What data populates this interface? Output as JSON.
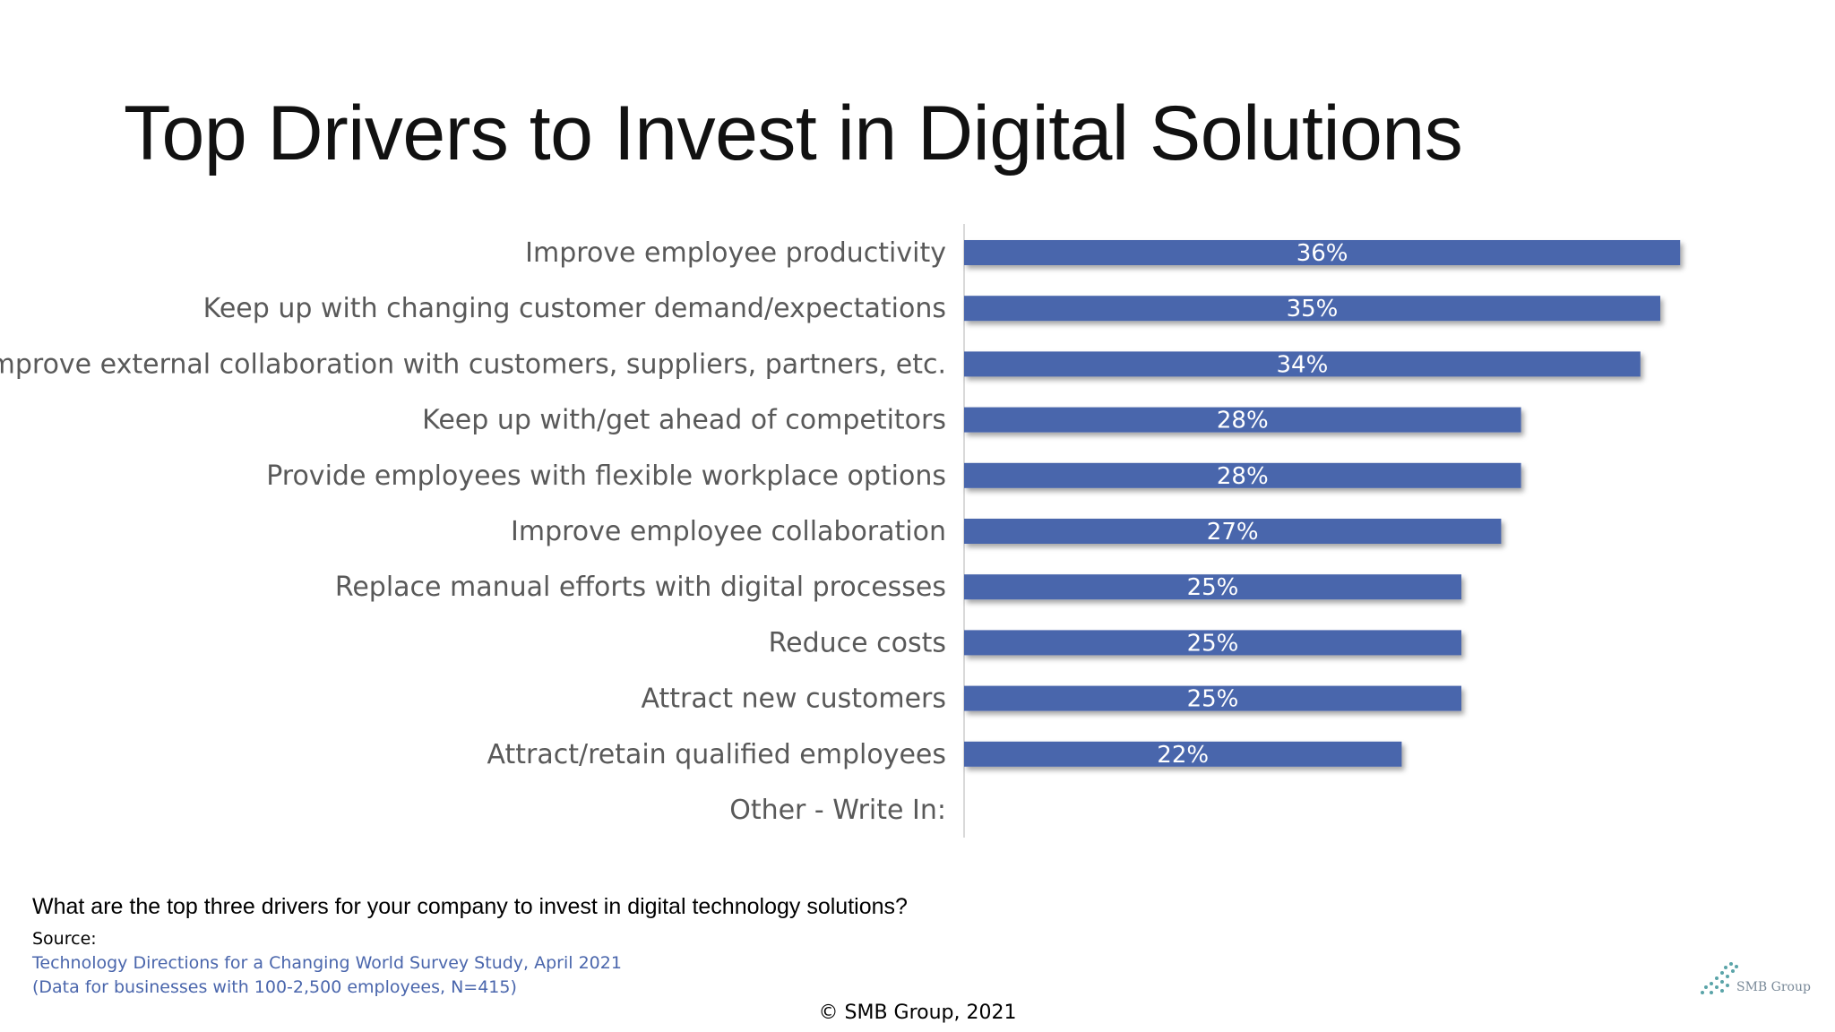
{
  "title": "Top Drivers to Invest in Digital Solutions",
  "chart_data": {
    "type": "bar",
    "orientation": "horizontal",
    "categories": [
      "Improve employee productivity",
      "Keep up with changing customer demand/expectations",
      "Improve external collaboration with customers, suppliers, partners, etc.",
      "Keep up with/get ahead of competitors",
      "Provide employees with flexible workplace options",
      "Improve employee collaboration",
      "Replace manual efforts with digital processes",
      "Reduce costs",
      "Attract new customers",
      "Attract/retain qualified employees",
      "Other - Write In:"
    ],
    "values": [
      36,
      35,
      34,
      28,
      28,
      27,
      25,
      25,
      25,
      22,
      0
    ],
    "value_labels": [
      "36%",
      "35%",
      "34%",
      "28%",
      "28%",
      "27%",
      "25%",
      "25%",
      "25%",
      "22%",
      ""
    ],
    "bar_color": "#4a66ac",
    "grid": false,
    "legend": "none"
  },
  "footer": {
    "question": "What are the top three drivers for your company to invest in digital technology solutions?",
    "source_label": "Source:",
    "source_line1": "Technology Directions for a Changing World Survey Study, April 2021",
    "source_line2": "(Data for businesses with 100-2,500 employees, N=415)",
    "copyright": "© SMB Group, 2021"
  },
  "logo": {
    "icon": "smb-group-logo-icon",
    "text": "SMB Group"
  }
}
